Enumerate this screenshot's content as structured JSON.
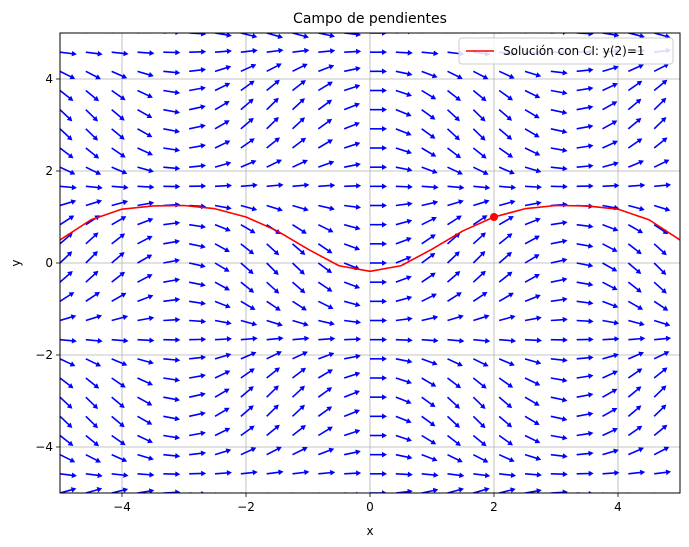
{
  "chart_data": {
    "type": "quiver",
    "title": "Campo de pendientes",
    "xlabel": "x",
    "ylabel": "y",
    "xlim": [
      -5,
      5
    ],
    "ylim": [
      -5,
      5
    ],
    "xticks": [
      -4,
      -2,
      0,
      2,
      4
    ],
    "yticks": [
      -4,
      -2,
      0,
      2,
      4
    ],
    "xtick_labels": [
      "−4",
      "−2",
      "0",
      "2",
      "4"
    ],
    "ytick_labels": [
      "−4",
      "−2",
      "0",
      "2",
      "4"
    ],
    "grid": true,
    "legend_position": "top-right",
    "field": {
      "x_range": [
        -5,
        5
      ],
      "y_range": [
        -5,
        5
      ],
      "n": 25,
      "color": "#0000ff",
      "normalized": true
    },
    "series": [
      {
        "name": "Solución con CI: y(2)=1",
        "color": "#ff0000",
        "x": [
          -5,
          -4.5,
          -4,
          -3.5,
          -3,
          -2.5,
          -2,
          -1.5,
          -1,
          -0.5,
          0,
          0.5,
          1,
          1.5,
          2,
          2.5,
          3,
          3.5,
          4,
          4.5,
          5
        ],
        "y": [
          0.5,
          0.94,
          1.17,
          1.24,
          1.25,
          1.18,
          1.0,
          0.7,
          0.3,
          -0.06,
          -0.18,
          -0.06,
          0.3,
          0.7,
          1.0,
          1.18,
          1.25,
          1.24,
          1.17,
          0.94,
          0.5
        ]
      }
    ],
    "initial_condition": {
      "x": 2,
      "y": 1
    }
  }
}
